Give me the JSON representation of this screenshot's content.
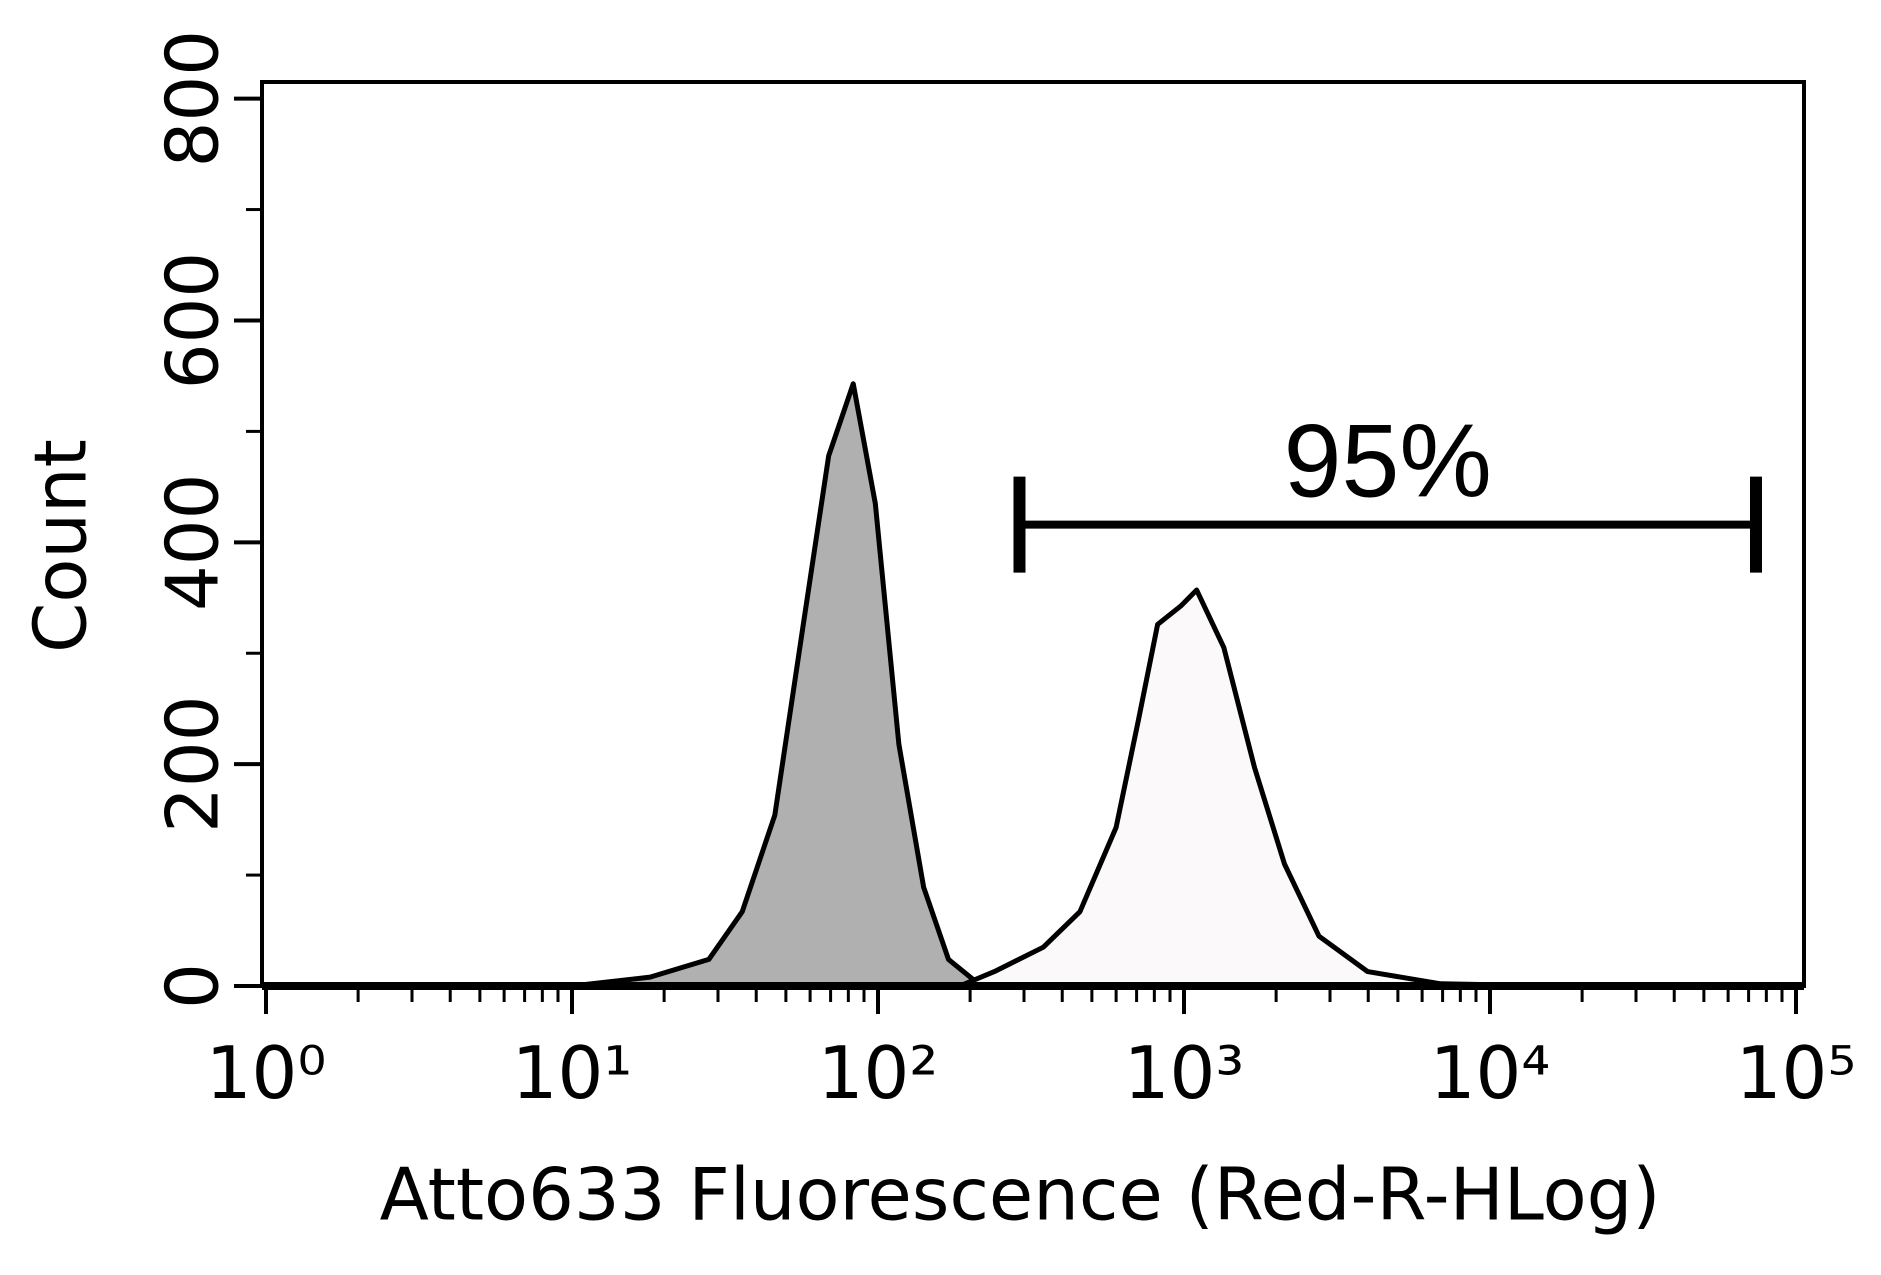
{
  "chart_data": {
    "type": "area",
    "xlabel": "Atto633 Fluorescence (Red-R-HLog)",
    "ylabel": "Count",
    "xscale": "log",
    "xlim": [
      1,
      100000
    ],
    "ylim": [
      0,
      815
    ],
    "xticks": [
      {
        "value": 1,
        "label": "10⁰"
      },
      {
        "value": 10,
        "label": "10¹"
      },
      {
        "value": 100,
        "label": "10²"
      },
      {
        "value": 1000,
        "label": "10³"
      },
      {
        "value": 10000,
        "label": "10⁴"
      },
      {
        "value": 100000,
        "label": "10⁵"
      }
    ],
    "xminorticks": [
      2,
      3,
      4,
      5,
      6,
      7,
      8,
      9,
      20,
      30,
      40,
      50,
      60,
      70,
      80,
      90,
      200,
      300,
      400,
      500,
      600,
      700,
      800,
      900,
      2000,
      3000,
      4000,
      5000,
      6000,
      7000,
      8000,
      9000,
      20000,
      30000,
      40000,
      50000,
      60000,
      70000,
      80000,
      90000
    ],
    "yticks": [
      0,
      200,
      400,
      600,
      800
    ],
    "yminorticks": [
      100,
      300,
      500,
      700
    ],
    "series": [
      {
        "color": "#b0b0b0",
        "x": [
          1,
          10,
          18,
          28,
          36,
          46,
          57,
          69,
          83,
          98,
          117,
          141,
          170,
          213,
          290,
          100000
        ],
        "values": [
          0,
          0,
          8,
          24,
          67,
          154,
          326,
          478,
          543,
          435,
          218,
          89,
          24,
          2,
          0,
          0
        ]
      },
      {
        "color": "#fbf9f9",
        "x": [
          1,
          185,
          240,
          347,
          457,
          600,
          710,
          820,
          980,
          1100,
          1350,
          1700,
          2130,
          2760,
          3980,
          6900,
          17000,
          100000
        ],
        "values": [
          0,
          0,
          13,
          35,
          67,
          143,
          240,
          326,
          343,
          357,
          305,
          197,
          110,
          45,
          13,
          2,
          0,
          0
        ]
      }
    ],
    "gate": {
      "label": "95%",
      "x": [
        290,
        74000
      ],
      "y": 416
    }
  }
}
